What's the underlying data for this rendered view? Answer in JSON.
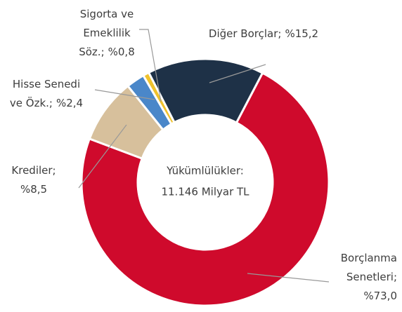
{
  "chart_data": {
    "type": "donut",
    "center_label": [
      "Yükümlülükler:",
      "11.146 Milyar TL"
    ],
    "categories": [
      [
        "Borçlanma",
        "Senetleri;"
      ],
      [
        "Krediler;"
      ],
      [
        "Hisse Senedi",
        "ve Özk.;"
      ],
      [
        "Sigorta ve",
        "Emeklilik",
        "Söz.;"
      ],
      [
        "Diğer Borçlar;"
      ]
    ],
    "values": [
      73.0,
      8.5,
      2.4,
      0.8,
      15.2
    ],
    "value_labels": [
      "%73,0",
      "%8,5",
      "%2,4",
      "%0,8",
      "%15,2"
    ],
    "colors": [
      "#cf0a2c",
      "#d7c09c",
      "#4a87c9",
      "#f0c22c",
      "#1e3147"
    ]
  }
}
